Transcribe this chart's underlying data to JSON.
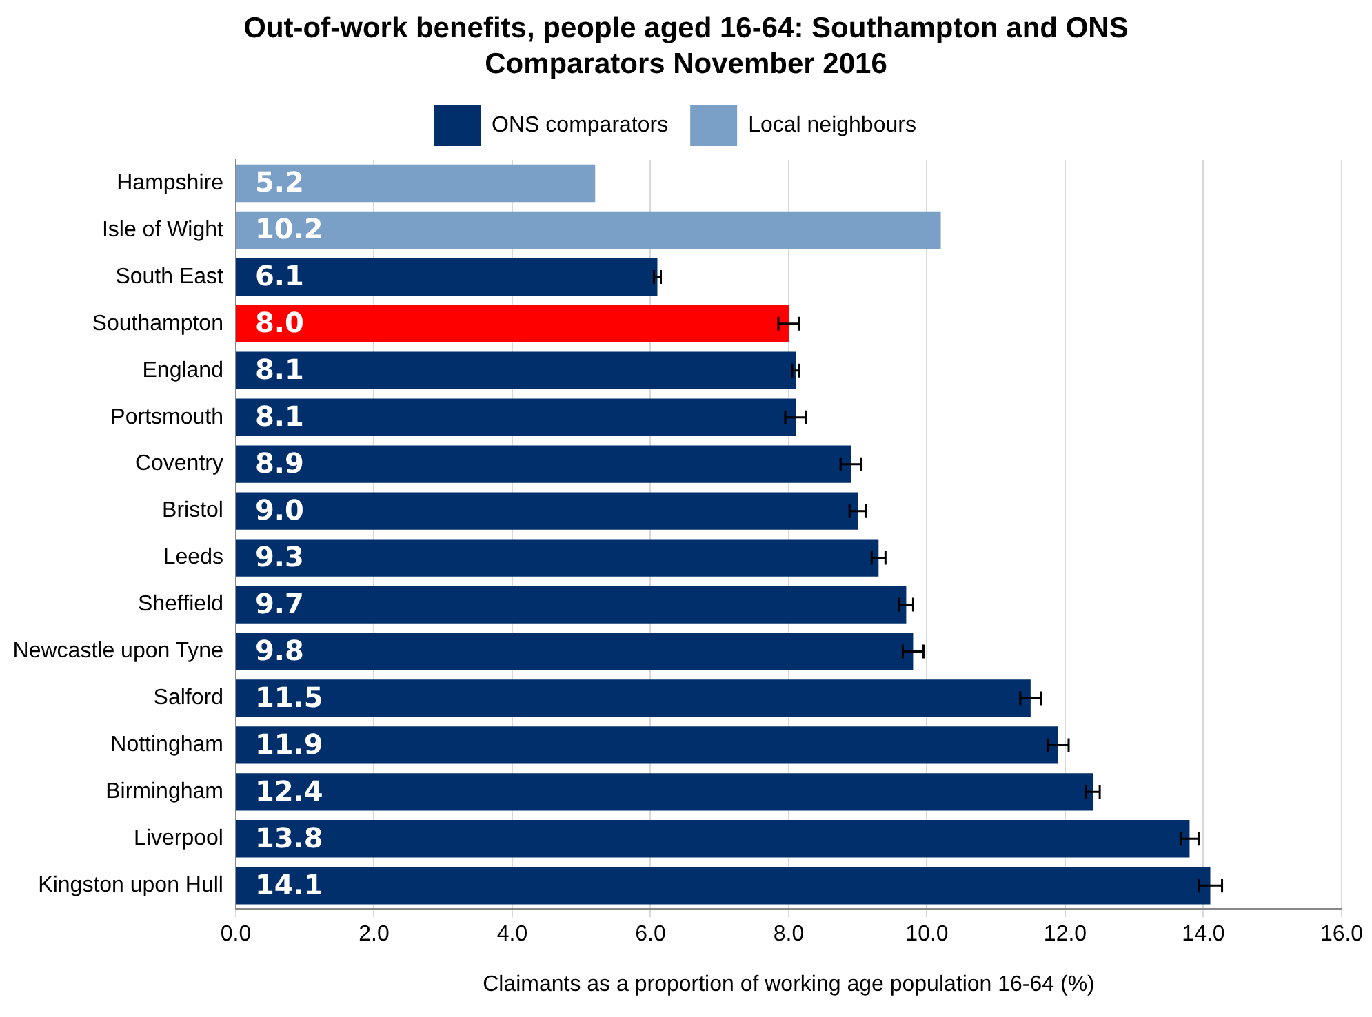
{
  "chart_data": {
    "type": "bar",
    "orientation": "horizontal",
    "stacked": true,
    "title": "Out-of-work benefits, people aged 16-64: Southampton and ONS Comparators November 2016",
    "xlabel": "Claimants as a proportion of working age population 16-64 (%)",
    "categories": [
      "Hampshire",
      "Isle of Wight",
      "South East",
      "Southampton",
      "England",
      "Portsmouth",
      "Coventry",
      "Bristol",
      "Leeds",
      "Sheffield",
      "Newcastle upon Tyne",
      "Salford",
      "Nottingham",
      "Birmingham",
      "Liverpool",
      "Kingston upon Hull"
    ],
    "series": [
      {
        "name": "ONS comparators",
        "color": "#002f6c",
        "values": [
          null,
          null,
          6.1,
          8.0,
          8.1,
          8.1,
          8.9,
          9.0,
          9.3,
          9.7,
          9.8,
          11.5,
          11.9,
          12.4,
          13.8,
          14.1
        ],
        "value_labels": [
          null,
          null,
          "6.1",
          "8.0",
          "8.1",
          "8.1",
          "8.9",
          "9.0",
          "9.3",
          "9.7",
          "9.8",
          "11.5",
          "11.9",
          "12.4",
          "13.8",
          "14.1"
        ],
        "colors": [
          "#002f6c",
          "#002f6c",
          "#002f6c",
          "#ff0000",
          "#002f6c",
          "#002f6c",
          "#002f6c",
          "#002f6c",
          "#002f6c",
          "#002f6c",
          "#002f6c",
          "#002f6c",
          "#002f6c",
          "#002f6c",
          "#002f6c",
          "#002f6c"
        ],
        "errors": [
          null,
          null,
          0.05,
          0.15,
          0.05,
          0.15,
          0.15,
          0.12,
          0.1,
          0.1,
          0.15,
          0.15,
          0.15,
          0.1,
          0.13,
          0.17
        ]
      },
      {
        "name": "Local neighbours",
        "color": "#7ba0c8",
        "values": [
          5.2,
          10.2,
          null,
          null,
          null,
          null,
          null,
          null,
          null,
          null,
          null,
          null,
          null,
          null,
          null,
          null
        ],
        "value_labels": [
          "5.2",
          "10.2",
          null,
          null,
          null,
          null,
          null,
          null,
          null,
          null,
          null,
          null,
          null,
          null,
          null,
          null
        ]
      }
    ],
    "xlim": [
      0,
      16
    ],
    "xticks": [
      {
        "value": 0,
        "label": "0.0"
      },
      {
        "value": 2,
        "label": "2.0"
      },
      {
        "value": 4,
        "label": "4.0"
      },
      {
        "value": 6,
        "label": "6.0"
      },
      {
        "value": 8,
        "label": "8.0"
      },
      {
        "value": 10,
        "label": "10.0"
      },
      {
        "value": 12,
        "label": "12.0"
      },
      {
        "value": 14,
        "label": "14.0"
      },
      {
        "value": 16,
        "label": "16.0"
      }
    ],
    "grid": "x",
    "legend": "top"
  }
}
